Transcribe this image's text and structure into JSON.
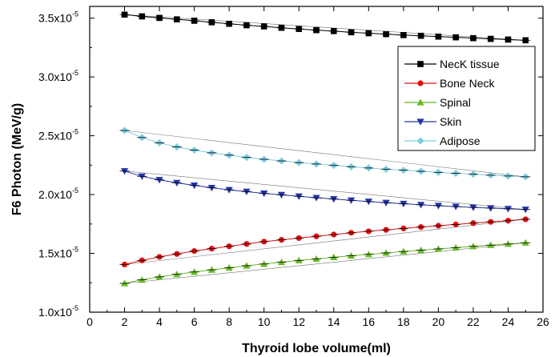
{
  "chart_data": {
    "type": "line",
    "xlabel": "Thyroid lobe volume(ml)",
    "ylabel": "F6 Photon (MeV/g)",
    "xlim": [
      0,
      26
    ],
    "ylim": [
      1e-05,
      3.6e-05
    ],
    "x_ticks": [
      {
        "value": 0,
        "label": "0"
      },
      {
        "value": 2,
        "label": "2"
      },
      {
        "value": 4,
        "label": "4"
      },
      {
        "value": 6,
        "label": "6"
      },
      {
        "value": 8,
        "label": "8"
      },
      {
        "value": 10,
        "label": "10"
      },
      {
        "value": 12,
        "label": "12"
      },
      {
        "value": 14,
        "label": "14"
      },
      {
        "value": 16,
        "label": "16"
      },
      {
        "value": 18,
        "label": "18"
      },
      {
        "value": 20,
        "label": "20"
      },
      {
        "value": 22,
        "label": "22"
      },
      {
        "value": 24,
        "label": "24"
      },
      {
        "value": 26,
        "label": "26"
      }
    ],
    "y_ticks": [
      {
        "value": 1e-05,
        "mantissa": "1.0x10",
        "exp": "-5"
      },
      {
        "value": 1.5e-05,
        "mantissa": "1.5x10",
        "exp": "-5"
      },
      {
        "value": 2e-05,
        "mantissa": "2.0x10",
        "exp": "-5"
      },
      {
        "value": 2.5e-05,
        "mantissa": "2.5x10",
        "exp": "-5"
      },
      {
        "value": 3e-05,
        "mantissa": "3.0x10",
        "exp": "-5"
      },
      {
        "value": 3.5e-05,
        "mantissa": "3.5x10",
        "exp": "-5"
      }
    ],
    "grid": false,
    "legend_position": "top-right",
    "x": [
      2,
      3,
      4,
      5,
      6,
      7,
      8,
      9,
      10,
      11,
      12,
      13,
      14,
      15,
      16,
      17,
      18,
      19,
      20,
      21,
      22,
      23,
      24,
      25
    ],
    "series": [
      {
        "name": "NecK tissue",
        "color": "#000000",
        "marker": "square",
        "values": [
          3.53e-05,
          3.515e-05,
          3.502e-05,
          3.49e-05,
          3.478e-05,
          3.465e-05,
          3.452e-05,
          3.44e-05,
          3.43e-05,
          3.418e-05,
          3.408e-05,
          3.398e-05,
          3.39e-05,
          3.38e-05,
          3.372e-05,
          3.364e-05,
          3.356e-05,
          3.35e-05,
          3.343e-05,
          3.337e-05,
          3.33e-05,
          3.324e-05,
          3.318e-05,
          3.312e-05
        ]
      },
      {
        "name": "Bone Neck",
        "color": "#e01010",
        "marker": "circle",
        "values": [
          1.405e-05,
          1.44e-05,
          1.47e-05,
          1.495e-05,
          1.52e-05,
          1.54e-05,
          1.56e-05,
          1.58e-05,
          1.6e-05,
          1.615e-05,
          1.63e-05,
          1.645e-05,
          1.66e-05,
          1.675e-05,
          1.688e-05,
          1.7e-05,
          1.712e-05,
          1.724e-05,
          1.735e-05,
          1.746e-05,
          1.757e-05,
          1.768e-05,
          1.778e-05,
          1.79e-05
        ]
      },
      {
        "name": "Spinal",
        "color": "#66bb22",
        "marker": "triangle-up",
        "values": [
          1.245e-05,
          1.275e-05,
          1.3e-05,
          1.322e-05,
          1.342e-05,
          1.36e-05,
          1.378e-05,
          1.395e-05,
          1.41e-05,
          1.425e-05,
          1.44e-05,
          1.453e-05,
          1.467e-05,
          1.48e-05,
          1.492e-05,
          1.504e-05,
          1.516e-05,
          1.527e-05,
          1.538e-05,
          1.549e-05,
          1.56e-05,
          1.57e-05,
          1.58e-05,
          1.59e-05
        ]
      },
      {
        "name": "Skin",
        "color": "#2233aa",
        "marker": "triangle-down",
        "values": [
          2.2e-05,
          2.155e-05,
          2.125e-05,
          2.1e-05,
          2.078e-05,
          2.058e-05,
          2.04e-05,
          2.025e-05,
          2.01e-05,
          1.998e-05,
          1.985e-05,
          1.973e-05,
          1.962e-05,
          1.951e-05,
          1.941e-05,
          1.931e-05,
          1.922e-05,
          1.913e-05,
          1.905e-05,
          1.898e-05,
          1.891e-05,
          1.885e-05,
          1.879e-05,
          1.873e-05
        ]
      },
      {
        "name": "Adipose",
        "color": "#7ccde0",
        "marker": "diamond",
        "values": [
          2.545e-05,
          2.485e-05,
          2.44e-05,
          2.405e-05,
          2.378e-05,
          2.355e-05,
          2.335e-05,
          2.316e-05,
          2.3e-05,
          2.286e-05,
          2.272e-05,
          2.26e-05,
          2.248e-05,
          2.237e-05,
          2.226e-05,
          2.216e-05,
          2.207e-05,
          2.198e-05,
          2.189e-05,
          2.181e-05,
          2.173e-05,
          2.165e-05,
          2.158e-05,
          2.151e-05
        ]
      }
    ]
  }
}
